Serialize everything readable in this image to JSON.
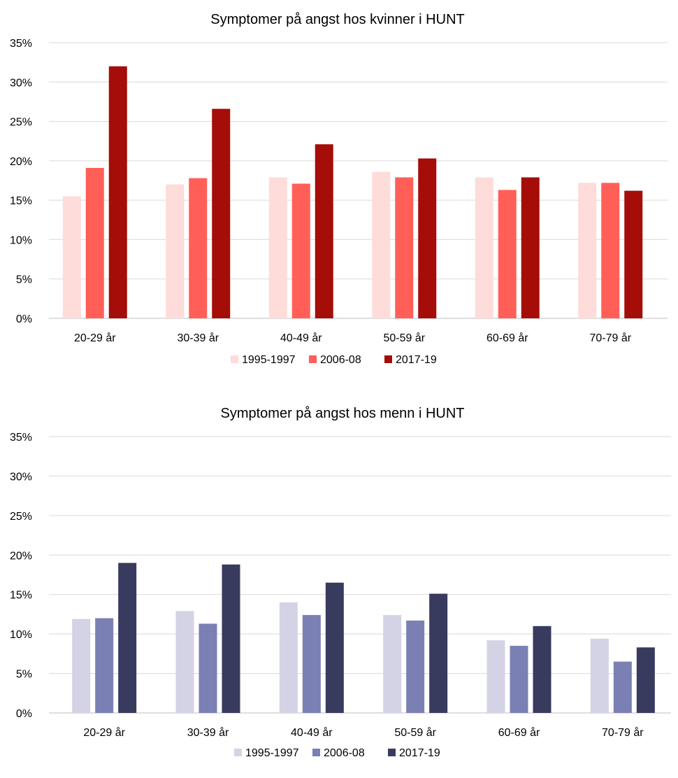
{
  "chart_data": [
    {
      "type": "bar",
      "title": "Symptomer på angst hos kvinner i HUNT",
      "xlabel": "",
      "ylabel": "",
      "ylim": [
        0,
        35
      ],
      "yticks": [
        "0%",
        "5%",
        "10%",
        "15%",
        "20%",
        "25%",
        "30%",
        "35%"
      ],
      "grid": true,
      "legend_position": "bottom",
      "categories": [
        "20-29 år",
        "30-39 år",
        "40-49 år",
        "50-59 år",
        "60-69 år",
        "70-79 år"
      ],
      "series": [
        {
          "name": "1995-1997",
          "color": "#FDDCDA",
          "values": [
            15.5,
            17.0,
            17.9,
            18.6,
            17.9,
            17.2
          ]
        },
        {
          "name": "2006-08",
          "color": "#FF5F57",
          "values": [
            19.1,
            17.8,
            17.1,
            17.9,
            16.3,
            17.2
          ]
        },
        {
          "name": "2017-19",
          "color": "#A50D08",
          "values": [
            32.0,
            26.6,
            22.1,
            20.3,
            17.9,
            16.2
          ]
        }
      ]
    },
    {
      "type": "bar",
      "title": "Symptomer på angst hos menn i HUNT",
      "xlabel": "",
      "ylabel": "",
      "ylim": [
        0,
        35
      ],
      "yticks": [
        "0%",
        "5%",
        "10%",
        "15%",
        "20%",
        "25%",
        "30%",
        "35%"
      ],
      "grid": true,
      "legend_position": "bottom",
      "categories": [
        "20-29 år",
        "30-39 år",
        "40-49 år",
        "50-59 år",
        "60-69 år",
        "70-79 år"
      ],
      "series": [
        {
          "name": "1995-1997",
          "color": "#D3D3E5",
          "values": [
            11.9,
            12.9,
            14.0,
            12.4,
            9.2,
            9.4
          ]
        },
        {
          "name": "2006-08",
          "color": "#7A80B3",
          "values": [
            12.0,
            11.3,
            12.4,
            11.7,
            8.5,
            6.5
          ]
        },
        {
          "name": "2017-19",
          "color": "#383B5E",
          "values": [
            19.0,
            18.8,
            16.5,
            15.1,
            11.0,
            8.3
          ]
        }
      ]
    }
  ]
}
